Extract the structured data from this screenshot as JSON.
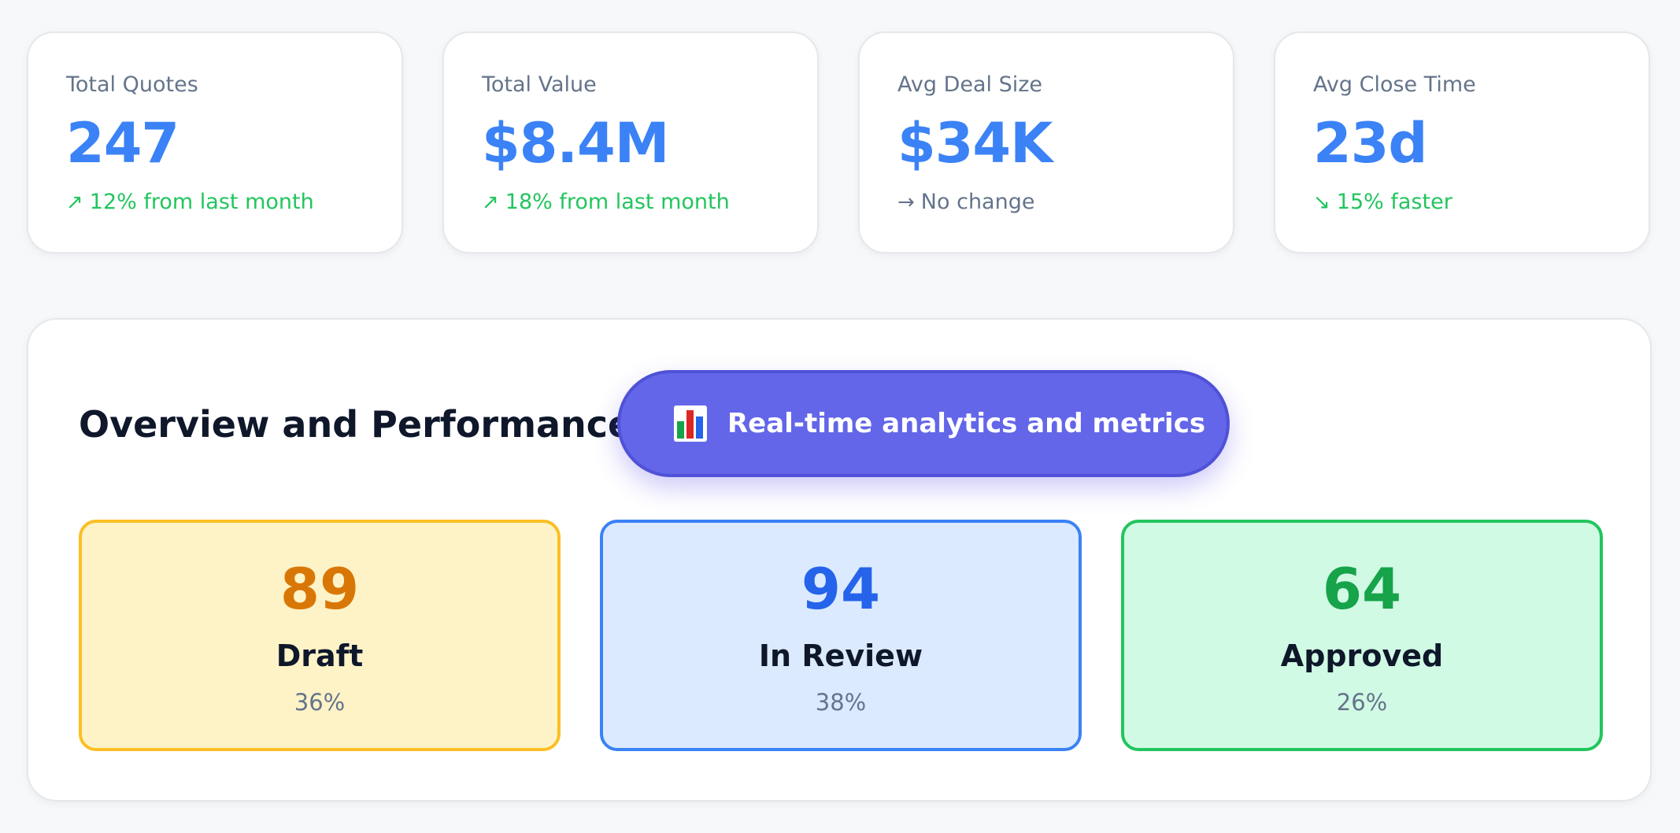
{
  "stats": [
    {
      "label": "Total Quotes",
      "value": "247",
      "trend_icon": "↗",
      "trend_text": "12% from last month"
    },
    {
      "label": "Total Value",
      "value": "$8.4M",
      "trend_icon": "↗",
      "trend_text": "18% from last month"
    },
    {
      "label": "Avg Deal Size",
      "value": "$34K",
      "trend_icon": "→",
      "trend_text": "No change"
    },
    {
      "label": "Avg Close Time",
      "value": "23d",
      "trend_icon": "↘",
      "trend_text": "15% faster"
    }
  ],
  "overview": {
    "title": "Overview and Performance",
    "badge": {
      "icon": "bar-chart-icon",
      "label": "Real-time analytics and metrics"
    },
    "statuses": [
      {
        "count": "89",
        "name": "Draft",
        "percent": "36%"
      },
      {
        "count": "94",
        "name": "In Review",
        "percent": "38%"
      },
      {
        "count": "64",
        "name": "Approved",
        "percent": "26%"
      }
    ]
  },
  "colors": {
    "accent_blue": "#3b82f6",
    "positive_green": "#22c55e",
    "neutral_gray": "#64748b",
    "pill_indigo": "#6366e8",
    "draft_amber": "#d97706",
    "review_blue": "#2563eb",
    "approved_green": "#16a34a"
  }
}
